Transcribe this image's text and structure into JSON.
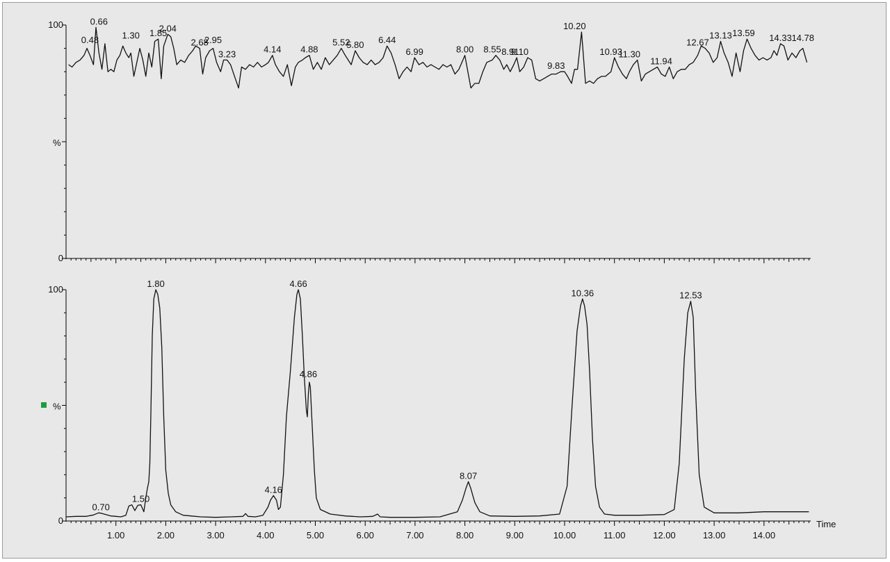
{
  "legend_marker_color": "#1a9e3f",
  "chart_data": [
    {
      "type": "line",
      "name_hint": "top-trace",
      "ylabel": "%",
      "ylim": [
        0,
        100
      ],
      "xlim": [
        0,
        15
      ],
      "y_ticks": [
        "0",
        "100"
      ],
      "peak_labels": [
        {
          "x": 0.48,
          "y": 91,
          "text": "0.48"
        },
        {
          "x": 0.66,
          "y": 99,
          "text": "0.66"
        },
        {
          "x": 1.3,
          "y": 93,
          "text": "1.30"
        },
        {
          "x": 1.85,
          "y": 94,
          "text": "1.85"
        },
        {
          "x": 2.04,
          "y": 96,
          "text": "2.04"
        },
        {
          "x": 2.68,
          "y": 90,
          "text": "2.68"
        },
        {
          "x": 2.95,
          "y": 91,
          "text": "2.95"
        },
        {
          "x": 3.23,
          "y": 85,
          "text": "3.23"
        },
        {
          "x": 4.14,
          "y": 87,
          "text": "4.14"
        },
        {
          "x": 4.88,
          "y": 87,
          "text": "4.88"
        },
        {
          "x": 5.52,
          "y": 90,
          "text": "5.52"
        },
        {
          "x": 5.8,
          "y": 89,
          "text": "5.80"
        },
        {
          "x": 6.44,
          "y": 91,
          "text": "6.44"
        },
        {
          "x": 6.99,
          "y": 86,
          "text": "6.99"
        },
        {
          "x": 8.0,
          "y": 87,
          "text": "8.00"
        },
        {
          "x": 8.55,
          "y": 87,
          "text": "8.55"
        },
        {
          "x": 8.91,
          "y": 86,
          "text": "8.91"
        },
        {
          "x": 9.1,
          "y": 86,
          "text": "9.10"
        },
        {
          "x": 9.83,
          "y": 80,
          "text": "9.83"
        },
        {
          "x": 10.2,
          "y": 97,
          "text": "10.20"
        },
        {
          "x": 10.93,
          "y": 86,
          "text": "10.93"
        },
        {
          "x": 11.3,
          "y": 85,
          "text": "11.30"
        },
        {
          "x": 11.94,
          "y": 82,
          "text": "11.94"
        },
        {
          "x": 12.67,
          "y": 90,
          "text": "12.67"
        },
        {
          "x": 13.13,
          "y": 93,
          "text": "13.13"
        },
        {
          "x": 13.59,
          "y": 94,
          "text": "13.59"
        },
        {
          "x": 14.33,
          "y": 92,
          "text": "14.33"
        },
        {
          "x": 14.78,
          "y": 92,
          "text": "14.78"
        }
      ],
      "x": [
        0.05,
        0.12,
        0.2,
        0.28,
        0.36,
        0.42,
        0.48,
        0.55,
        0.6,
        0.66,
        0.72,
        0.78,
        0.84,
        0.9,
        0.96,
        1.02,
        1.08,
        1.14,
        1.2,
        1.26,
        1.3,
        1.36,
        1.42,
        1.48,
        1.54,
        1.6,
        1.66,
        1.72,
        1.78,
        1.85,
        1.91,
        1.96,
        2.04,
        2.1,
        2.16,
        2.22,
        2.3,
        2.38,
        2.46,
        2.54,
        2.6,
        2.68,
        2.74,
        2.8,
        2.88,
        2.95,
        3.02,
        3.1,
        3.16,
        3.23,
        3.3,
        3.38,
        3.46,
        3.52,
        3.6,
        3.68,
        3.76,
        3.84,
        3.92,
        4.0,
        4.06,
        4.14,
        4.2,
        4.28,
        4.36,
        4.44,
        4.52,
        4.6,
        4.66,
        4.74,
        4.8,
        4.88,
        4.96,
        5.04,
        5.12,
        5.2,
        5.28,
        5.36,
        5.44,
        5.52,
        5.6,
        5.66,
        5.72,
        5.8,
        5.88,
        5.96,
        6.04,
        6.12,
        6.2,
        6.28,
        6.36,
        6.44,
        6.52,
        6.6,
        6.68,
        6.76,
        6.84,
        6.92,
        6.99,
        7.08,
        7.16,
        7.24,
        7.32,
        7.4,
        7.48,
        7.56,
        7.64,
        7.72,
        7.8,
        7.88,
        7.94,
        8.0,
        8.06,
        8.12,
        8.2,
        8.28,
        8.36,
        8.44,
        8.55,
        8.62,
        8.7,
        8.78,
        8.84,
        8.91,
        8.98,
        9.04,
        9.1,
        9.18,
        9.26,
        9.34,
        9.42,
        9.5,
        9.58,
        9.66,
        9.74,
        9.83,
        9.92,
        10.0,
        10.06,
        10.14,
        10.2,
        10.26,
        10.34,
        10.42,
        10.5,
        10.58,
        10.66,
        10.74,
        10.82,
        10.93,
        11.0,
        11.08,
        11.16,
        11.24,
        11.3,
        11.38,
        11.46,
        11.54,
        11.62,
        11.7,
        11.78,
        11.86,
        11.94,
        12.02,
        12.1,
        12.18,
        12.26,
        12.34,
        12.42,
        12.5,
        12.58,
        12.67,
        12.74,
        12.82,
        12.9,
        12.98,
        13.06,
        13.13,
        13.2,
        13.28,
        13.36,
        13.44,
        13.52,
        13.59,
        13.66,
        13.74,
        13.82,
        13.9,
        13.98,
        14.06,
        14.14,
        14.2,
        14.26,
        14.33,
        14.4,
        14.48,
        14.56,
        14.64,
        14.72,
        14.78,
        14.86
      ],
      "y": [
        83,
        82,
        84,
        85,
        87,
        90,
        87,
        83,
        99,
        88,
        81,
        92,
        80,
        81,
        80,
        85,
        87,
        91,
        88,
        86,
        88,
        78,
        84,
        90,
        85,
        78,
        88,
        82,
        93,
        94,
        77,
        91,
        96,
        95,
        90,
        83,
        85,
        84,
        87,
        89,
        91,
        90,
        79,
        86,
        89,
        90,
        84,
        80,
        85,
        85,
        83,
        78,
        73,
        82,
        81,
        83,
        82,
        84,
        82,
        83,
        84,
        87,
        83,
        80,
        78,
        83,
        74,
        82,
        84,
        85,
        86,
        87,
        81,
        84,
        81,
        86,
        83,
        85,
        87,
        90,
        87,
        85,
        83,
        89,
        86,
        84,
        83,
        85,
        83,
        84,
        86,
        91,
        88,
        83,
        77,
        80,
        82,
        80,
        86,
        83,
        84,
        82,
        83,
        82,
        81,
        83,
        82,
        83,
        79,
        81,
        84,
        87,
        80,
        73,
        75,
        75,
        80,
        84,
        85,
        87,
        85,
        81,
        83,
        80,
        83,
        86,
        80,
        82,
        86,
        85,
        77,
        76,
        77,
        78,
        79,
        79,
        80,
        80,
        78,
        75,
        81,
        81,
        97,
        75,
        76,
        75,
        77,
        78,
        78,
        80,
        86,
        82,
        79,
        77,
        80,
        83,
        85,
        76,
        79,
        80,
        81,
        82,
        79,
        78,
        82,
        77,
        80,
        81,
        81,
        83,
        84,
        87,
        91,
        90,
        88,
        84,
        86,
        93,
        88,
        84,
        78,
        88,
        80,
        89,
        94,
        90,
        87,
        85,
        86,
        85,
        86,
        89,
        87,
        92,
        91,
        85,
        88,
        86,
        89,
        90,
        84
      ]
    },
    {
      "type": "line",
      "name_hint": "bottom-trace",
      "ylabel": "%",
      "ylim": [
        0,
        100
      ],
      "xlim": [
        0,
        15
      ],
      "xlabel": "Time",
      "x_ticks": [
        "1.00",
        "2.00",
        "3.00",
        "4.00",
        "5.00",
        "6.00",
        "7.00",
        "8.00",
        "9.00",
        "10.00",
        "11.00",
        "12.00",
        "13.00",
        "14.00"
      ],
      "y_ticks": [
        "0",
        "100"
      ],
      "peak_labels": [
        {
          "x": 0.7,
          "y": 3.5,
          "text": "0.70"
        },
        {
          "x": 1.5,
          "y": 7,
          "text": "1.50"
        },
        {
          "x": 1.8,
          "y": 100,
          "text": "1.80"
        },
        {
          "x": 4.16,
          "y": 11,
          "text": "4.16"
        },
        {
          "x": 4.66,
          "y": 100,
          "text": "4.66"
        },
        {
          "x": 4.86,
          "y": 61,
          "text": "4.86"
        },
        {
          "x": 8.07,
          "y": 17,
          "text": "8.07"
        },
        {
          "x": 10.36,
          "y": 96,
          "text": "10.36"
        },
        {
          "x": 12.53,
          "y": 95,
          "text": "12.53"
        }
      ],
      "x": [
        0.0,
        0.2,
        0.4,
        0.55,
        0.65,
        0.7,
        0.8,
        0.9,
        1.0,
        1.1,
        1.2,
        1.26,
        1.32,
        1.38,
        1.44,
        1.5,
        1.56,
        1.6,
        1.63,
        1.66,
        1.68,
        1.7,
        1.73,
        1.76,
        1.8,
        1.84,
        1.88,
        1.92,
        1.96,
        2.0,
        2.05,
        2.1,
        2.2,
        2.35,
        2.5,
        2.7,
        3.0,
        3.3,
        3.55,
        3.6,
        3.65,
        3.8,
        3.95,
        4.05,
        4.1,
        4.16,
        4.22,
        4.26,
        4.3,
        4.36,
        4.42,
        4.5,
        4.58,
        4.63,
        4.66,
        4.7,
        4.74,
        4.78,
        4.82,
        4.84,
        4.86,
        4.88,
        4.9,
        4.94,
        4.98,
        5.02,
        5.1,
        5.3,
        5.6,
        5.9,
        6.15,
        6.25,
        6.3,
        6.5,
        7.0,
        7.5,
        7.85,
        7.95,
        8.02,
        8.07,
        8.12,
        8.2,
        8.3,
        8.5,
        9.0,
        9.5,
        9.9,
        10.05,
        10.15,
        10.25,
        10.32,
        10.36,
        10.4,
        10.45,
        10.5,
        10.56,
        10.62,
        10.7,
        10.8,
        11.0,
        11.5,
        12.0,
        12.2,
        12.3,
        12.4,
        12.47,
        12.53,
        12.58,
        12.63,
        12.7,
        12.8,
        13.0,
        13.5,
        14.0,
        14.5,
        14.9
      ],
      "y": [
        1.8,
        2.0,
        2.0,
        2.6,
        3.5,
        3.4,
        2.8,
        2.2,
        2.0,
        1.8,
        2.5,
        6.5,
        7.0,
        4.5,
        6.8,
        7.0,
        4.0,
        10,
        14,
        17,
        25,
        45,
        80,
        96,
        100,
        98,
        92,
        75,
        45,
        22,
        12,
        7,
        4,
        2.5,
        2.2,
        1.8,
        1.6,
        1.8,
        2.0,
        3.2,
        2.0,
        1.8,
        2.5,
        6,
        9,
        11,
        9,
        5,
        6,
        20,
        45,
        65,
        88,
        98,
        100,
        96,
        80,
        62,
        48,
        45,
        55,
        60,
        58,
        40,
        22,
        10,
        5,
        3,
        2.2,
        1.8,
        2.0,
        3.0,
        1.8,
        1.6,
        1.6,
        1.8,
        4,
        9,
        14,
        17,
        14,
        8,
        4,
        2.2,
        2.0,
        2.2,
        3,
        15,
        50,
        82,
        93,
        96,
        93,
        85,
        65,
        35,
        15,
        6,
        3,
        2.5,
        2.5,
        2.8,
        5,
        25,
        70,
        90,
        95,
        88,
        55,
        20,
        6,
        3.5,
        3.5,
        4,
        4,
        4
      ]
    }
  ]
}
